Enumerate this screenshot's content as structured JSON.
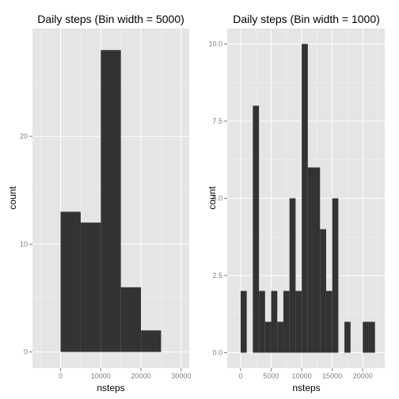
{
  "chart_data": [
    {
      "type": "bar",
      "title": "Daily steps (Bin width = 5000)",
      "xlabel": "nsteps",
      "ylabel": "count",
      "bin_width": 5000,
      "xlim": [
        -7000,
        32000
      ],
      "ylim": [
        -1.5,
        30
      ],
      "x_breaks": [
        0,
        10000,
        20000,
        30000
      ],
      "x_tick_labels": [
        "0",
        "10000",
        "20000",
        "30000"
      ],
      "y_breaks": [
        0,
        10,
        20
      ],
      "y_tick_labels": [
        "0",
        "10",
        "20"
      ],
      "grid": true,
      "bins": [
        {
          "x0": 0,
          "x1": 5000,
          "count": 13
        },
        {
          "x0": 5000,
          "x1": 10000,
          "count": 12
        },
        {
          "x0": 10000,
          "x1": 15000,
          "count": 28
        },
        {
          "x0": 15000,
          "x1": 20000,
          "count": 6
        },
        {
          "x0": 20000,
          "x1": 25000,
          "count": 2
        }
      ]
    },
    {
      "type": "bar",
      "title": "Daily steps (Bin width = 1000)",
      "xlabel": "nsteps",
      "ylabel": "count",
      "bin_width": 1000,
      "xlim": [
        -2200,
        23600
      ],
      "ylim": [
        -0.5,
        10.5
      ],
      "x_breaks": [
        0,
        5000,
        10000,
        15000,
        20000
      ],
      "x_tick_labels": [
        "0",
        "5000",
        "10000",
        "15000",
        "20000"
      ],
      "y_breaks": [
        0,
        2.5,
        5,
        7.5,
        10
      ],
      "y_tick_labels": [
        "0.0",
        "2.5",
        "5.0",
        "7.5",
        "10.0"
      ],
      "grid": true,
      "bins": [
        {
          "x0": 0,
          "x1": 1000,
          "count": 2
        },
        {
          "x0": 1000,
          "x1": 2000,
          "count": 0
        },
        {
          "x0": 2000,
          "x1": 3000,
          "count": 8
        },
        {
          "x0": 3000,
          "x1": 4000,
          "count": 2
        },
        {
          "x0": 4000,
          "x1": 5000,
          "count": 1
        },
        {
          "x0": 5000,
          "x1": 6000,
          "count": 2
        },
        {
          "x0": 6000,
          "x1": 7000,
          "count": 1
        },
        {
          "x0": 7000,
          "x1": 8000,
          "count": 2
        },
        {
          "x0": 8000,
          "x1": 9000,
          "count": 5
        },
        {
          "x0": 9000,
          "x1": 10000,
          "count": 2
        },
        {
          "x0": 10000,
          "x1": 11000,
          "count": 10
        },
        {
          "x0": 11000,
          "x1": 12000,
          "count": 6
        },
        {
          "x0": 12000,
          "x1": 13000,
          "count": 6
        },
        {
          "x0": 13000,
          "x1": 14000,
          "count": 4
        },
        {
          "x0": 14000,
          "x1": 15000,
          "count": 2
        },
        {
          "x0": 15000,
          "x1": 16000,
          "count": 5
        },
        {
          "x0": 16000,
          "x1": 17000,
          "count": 0
        },
        {
          "x0": 17000,
          "x1": 18000,
          "count": 1
        },
        {
          "x0": 18000,
          "x1": 19000,
          "count": 0
        },
        {
          "x0": 19000,
          "x1": 20000,
          "count": 0
        },
        {
          "x0": 20000,
          "x1": 21000,
          "count": 1
        },
        {
          "x0": 21000,
          "x1": 22000,
          "count": 1
        }
      ]
    }
  ],
  "colors": {
    "panel_background": "#e5e5e5",
    "bar_fill": "#333333",
    "grid_major": "#ffffff",
    "tick_label": "#7f7f7f"
  }
}
